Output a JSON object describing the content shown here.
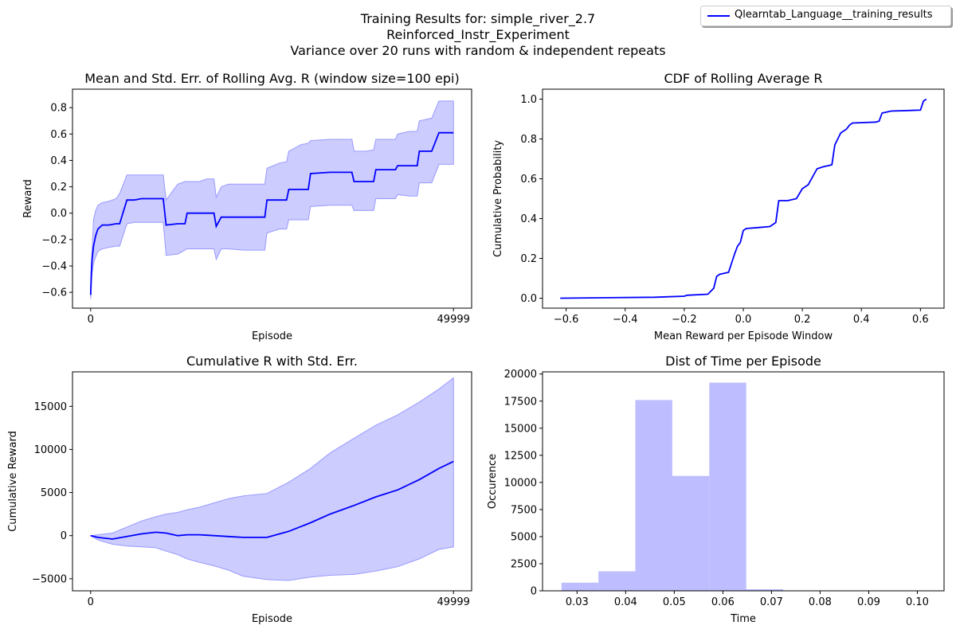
{
  "suptitle": {
    "line1": "Training Results for: simple_river_2.7",
    "line2": "Reinforced_Instr_Experiment",
    "line3": "Variance over 20 runs with random & independent repeats"
  },
  "legend": {
    "label": "Qlearntab_Language__training_results",
    "color": "#0000ff"
  },
  "colors": {
    "line": "#0000ff",
    "band": "#ccccff",
    "band_edge": "#9999ff",
    "hist": "#bdbdff"
  },
  "chart_data": [
    {
      "type": "line",
      "title": "Mean and Std. Err. of Rolling Avg. R (window size=100 epi)",
      "xlabel": "Episode",
      "ylabel": "Reward",
      "xlim": [
        -2500,
        52500
      ],
      "ylim": [
        -0.72,
        0.94
      ],
      "xticks": [
        0,
        49999
      ],
      "xtick_labels": [
        "0",
        "49999"
      ],
      "yticks": [
        -0.6,
        -0.4,
        -0.2,
        0.0,
        0.2,
        0.4,
        0.6,
        0.8
      ],
      "ytick_labels": [
        "−0.6",
        "−0.4",
        "−0.2",
        "0.0",
        "0.2",
        "0.4",
        "0.6",
        "0.8"
      ],
      "series": [
        {
          "x": [
            0,
            100,
            200,
            400,
            700,
            1000,
            1600,
            2500,
            3500,
            4000,
            5000,
            6000,
            7000,
            8000,
            9000,
            10000,
            10400,
            12000,
            13000,
            13300,
            15000,
            16000,
            17000,
            17300,
            18000,
            19000,
            21000,
            23000,
            24000,
            24300,
            26000,
            27000,
            27300,
            29000,
            30000,
            30300,
            33000,
            35000,
            36000,
            36300,
            38000,
            39000,
            39300,
            41000,
            42000,
            42300,
            44000,
            45000,
            45300,
            47000,
            48000,
            49999
          ],
          "values": [
            -0.62,
            -0.45,
            -0.35,
            -0.25,
            -0.17,
            -0.12,
            -0.09,
            -0.09,
            -0.08,
            -0.08,
            0.1,
            0.1,
            0.11,
            0.11,
            0.11,
            0.11,
            -0.09,
            -0.08,
            -0.08,
            0.0,
            0.0,
            0.0,
            0.0,
            -0.1,
            -0.03,
            -0.03,
            -0.03,
            -0.03,
            -0.03,
            0.1,
            0.1,
            0.1,
            0.18,
            0.18,
            0.18,
            0.3,
            0.31,
            0.31,
            0.31,
            0.24,
            0.24,
            0.24,
            0.33,
            0.33,
            0.33,
            0.36,
            0.36,
            0.36,
            0.47,
            0.47,
            0.61,
            0.61
          ],
          "upper": [
            -0.55,
            -0.38,
            -0.28,
            -0.05,
            0.02,
            0.06,
            0.08,
            0.09,
            0.11,
            0.15,
            0.29,
            0.29,
            0.29,
            0.29,
            0.29,
            0.29,
            0.1,
            0.22,
            0.24,
            0.24,
            0.24,
            0.26,
            0.26,
            0.12,
            0.2,
            0.22,
            0.22,
            0.22,
            0.22,
            0.34,
            0.38,
            0.39,
            0.47,
            0.52,
            0.53,
            0.55,
            0.56,
            0.56,
            0.56,
            0.47,
            0.47,
            0.48,
            0.56,
            0.56,
            0.56,
            0.6,
            0.62,
            0.62,
            0.7,
            0.72,
            0.85,
            0.85
          ],
          "lower": [
            -0.65,
            -0.55,
            -0.46,
            -0.38,
            -0.33,
            -0.29,
            -0.27,
            -0.26,
            -0.25,
            -0.25,
            -0.08,
            -0.07,
            -0.07,
            -0.07,
            -0.07,
            -0.07,
            -0.32,
            -0.31,
            -0.28,
            -0.27,
            -0.27,
            -0.27,
            -0.27,
            -0.35,
            -0.27,
            -0.27,
            -0.28,
            -0.28,
            -0.28,
            -0.15,
            -0.12,
            -0.12,
            -0.05,
            -0.05,
            -0.05,
            0.05,
            0.06,
            0.06,
            0.06,
            0.02,
            0.02,
            0.02,
            0.11,
            0.11,
            0.11,
            0.14,
            0.13,
            0.13,
            0.23,
            0.23,
            0.37,
            0.37
          ]
        }
      ]
    },
    {
      "type": "line",
      "title": "CDF of Rolling Average R",
      "xlabel": "Mean Reward per Episode Window",
      "ylabel": "Cumulative Probability",
      "xlim": [
        -0.68,
        0.68
      ],
      "ylim": [
        -0.05,
        1.05
      ],
      "xticks": [
        -0.6,
        -0.4,
        -0.2,
        0.0,
        0.2,
        0.4,
        0.6
      ],
      "xtick_labels": [
        "−0.6",
        "−0.4",
        "−0.2",
        "0.0",
        "0.2",
        "0.4",
        "0.6"
      ],
      "yticks": [
        0.0,
        0.2,
        0.4,
        0.6,
        0.8,
        1.0
      ],
      "ytick_labels": [
        "0.0",
        "0.2",
        "0.4",
        "0.6",
        "0.8",
        "1.0"
      ],
      "series": [
        {
          "x": [
            -0.62,
            -0.3,
            -0.2,
            -0.19,
            -0.12,
            -0.1,
            -0.09,
            -0.08,
            -0.05,
            -0.03,
            -0.02,
            -0.01,
            0.0,
            0.01,
            0.05,
            0.09,
            0.1,
            0.11,
            0.12,
            0.15,
            0.18,
            0.2,
            0.22,
            0.25,
            0.27,
            0.3,
            0.31,
            0.32,
            0.33,
            0.35,
            0.36,
            0.37,
            0.45,
            0.46,
            0.47,
            0.5,
            0.6,
            0.61,
            0.62
          ],
          "values": [
            0.0,
            0.005,
            0.01,
            0.015,
            0.02,
            0.05,
            0.11,
            0.12,
            0.13,
            0.22,
            0.26,
            0.28,
            0.34,
            0.35,
            0.355,
            0.36,
            0.37,
            0.38,
            0.49,
            0.49,
            0.5,
            0.55,
            0.57,
            0.65,
            0.66,
            0.67,
            0.77,
            0.8,
            0.83,
            0.85,
            0.87,
            0.88,
            0.885,
            0.89,
            0.93,
            0.94,
            0.945,
            0.99,
            1.0
          ]
        }
      ]
    },
    {
      "type": "line",
      "title": "Cumulative R with Std. Err.",
      "xlabel": "Episode",
      "ylabel": "Cumulative Reward",
      "xlim": [
        -2500,
        52500
      ],
      "ylim": [
        -6400,
        19000
      ],
      "xticks": [
        0,
        49999
      ],
      "xtick_labels": [
        "0",
        "49999"
      ],
      "yticks": [
        -5000,
        0,
        5000,
        10000,
        15000
      ],
      "ytick_labels": [
        "−5000",
        "0",
        "5000",
        "10000",
        "15000"
      ],
      "series": [
        {
          "x": [
            0,
            1000,
            3000,
            5000,
            7000,
            9000,
            10400,
            12000,
            13300,
            15000,
            17000,
            19000,
            21000,
            24300,
            27300,
            30300,
            33000,
            36300,
            39300,
            42300,
            45300,
            48000,
            49999
          ],
          "values": [
            0,
            -200,
            -400,
            -100,
            200,
            400,
            300,
            0,
            100,
            100,
            0,
            -100,
            -200,
            -200,
            500,
            1500,
            2500,
            3500,
            4500,
            5300,
            6500,
            7800,
            8600
          ],
          "upper": [
            0,
            100,
            300,
            1000,
            1700,
            2200,
            2500,
            2700,
            3000,
            3300,
            3800,
            4300,
            4600,
            4900,
            6200,
            7800,
            9600,
            11300,
            12800,
            14000,
            15500,
            17000,
            18300
          ],
          "lower": [
            0,
            -500,
            -1000,
            -1200,
            -1300,
            -1400,
            -1800,
            -2200,
            -2700,
            -3100,
            -3500,
            -4000,
            -4700,
            -5100,
            -5200,
            -4800,
            -4600,
            -4500,
            -4100,
            -3600,
            -2700,
            -1600,
            -1300
          ]
        }
      ]
    },
    {
      "type": "bar",
      "title": "Dist of Time per Episode",
      "xlabel": "Time",
      "ylabel": "Occurence",
      "xlim": [
        0.0229,
        0.1055
      ],
      "ylim": [
        0,
        20200
      ],
      "xticks": [
        0.03,
        0.04,
        0.05,
        0.06,
        0.07,
        0.08,
        0.09,
        0.1
      ],
      "xtick_labels": [
        "0.03",
        "0.04",
        "0.05",
        "0.06",
        "0.07",
        "0.08",
        "0.09",
        "0.10"
      ],
      "yticks": [
        0,
        2500,
        5000,
        7500,
        10000,
        12500,
        15000,
        17500,
        20000
      ],
      "ytick_labels": [
        "0",
        "2500",
        "5000",
        "7500",
        "10000",
        "12500",
        "15000",
        "17500",
        "20000"
      ],
      "bin_edges": [
        0.0268,
        0.0344,
        0.042,
        0.0496,
        0.0572,
        0.0648,
        0.0724,
        0.08,
        0.0876,
        0.0952,
        0.1028
      ],
      "values": [
        750,
        1800,
        17600,
        10600,
        19200,
        150,
        10,
        5,
        3,
        2
      ]
    }
  ]
}
